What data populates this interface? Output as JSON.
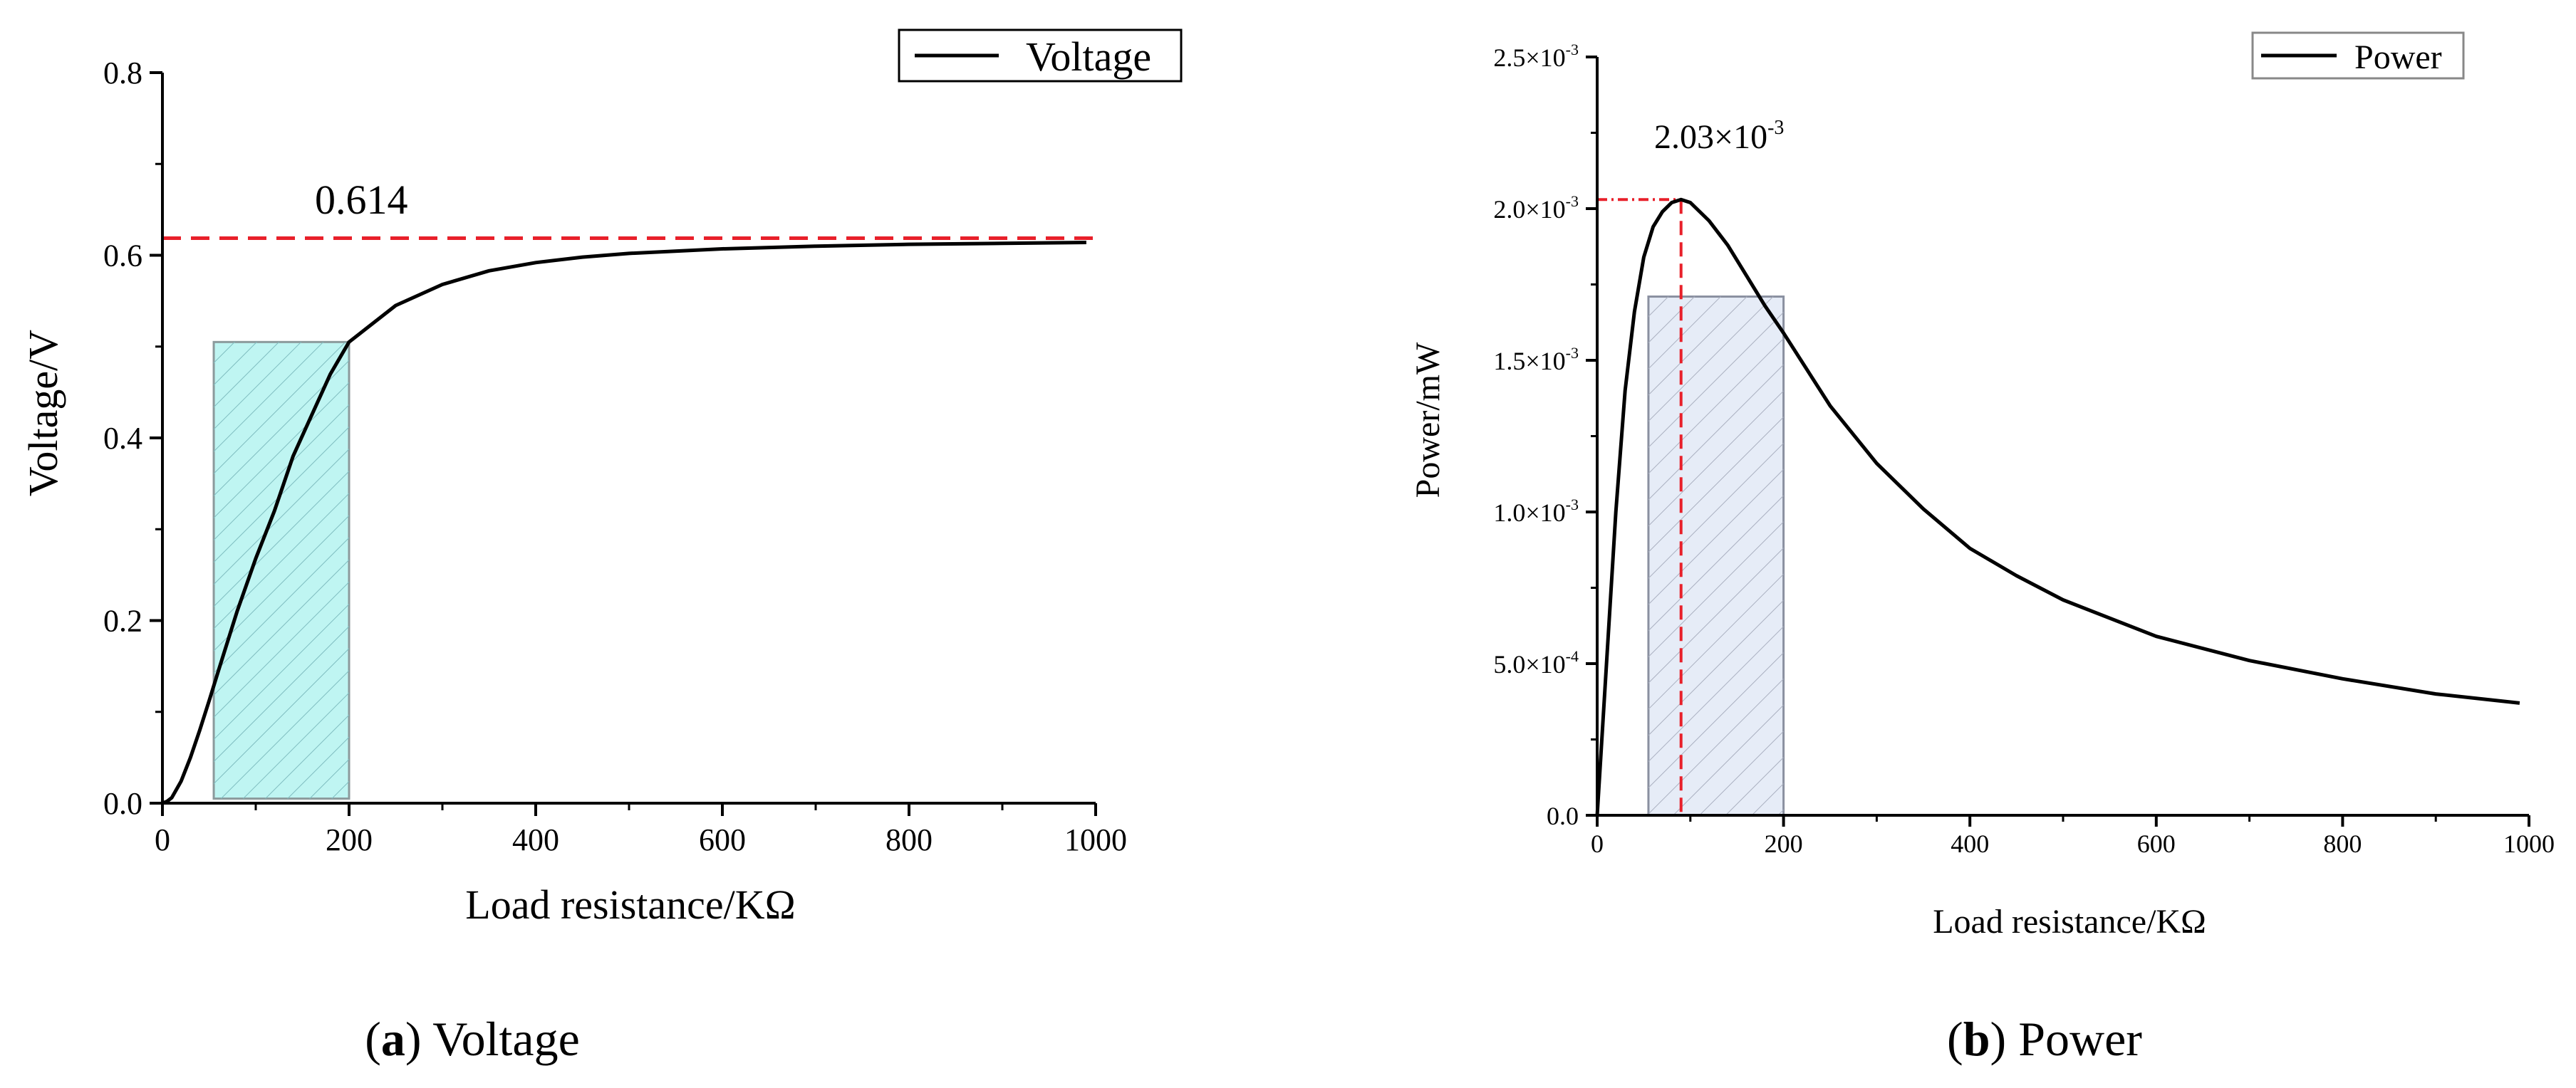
{
  "chart_data": [
    {
      "panel": "a",
      "type": "line",
      "caption_letter": "a",
      "caption_text": " Voltage",
      "xlabel": "Load resistance/KΩ",
      "ylabel": "Voltage/V",
      "xlim": [
        0,
        1000
      ],
      "ylim": [
        0,
        0.8
      ],
      "x_ticks": [
        "0",
        "200",
        "400",
        "600",
        "800",
        "1000"
      ],
      "y_ticks": [
        "0.0",
        "0.2",
        "0.4",
        "0.6",
        "0.8"
      ],
      "legend": [
        "Voltage"
      ],
      "legend_position": "top-right",
      "reference_line": {
        "y": 0.614,
        "label": "0.614",
        "color": "#e8202a"
      },
      "shaded_region": {
        "x0": 55,
        "x1": 200,
        "y0": 0.005,
        "y1": 0.505,
        "color": "#bff5f2"
      },
      "series": [
        {
          "name": "Voltage",
          "x": [
            0,
            5,
            10,
            20,
            30,
            40,
            50,
            60,
            80,
            100,
            120,
            140,
            160,
            180,
            200,
            250,
            300,
            350,
            400,
            450,
            500,
            600,
            700,
            800,
            900,
            990
          ],
          "y": [
            0.0,
            0.002,
            0.006,
            0.024,
            0.05,
            0.08,
            0.112,
            0.145,
            0.21,
            0.268,
            0.32,
            0.38,
            0.425,
            0.47,
            0.505,
            0.545,
            0.568,
            0.583,
            0.592,
            0.598,
            0.602,
            0.607,
            0.61,
            0.612,
            0.613,
            0.614
          ]
        }
      ]
    },
    {
      "panel": "b",
      "type": "line",
      "caption_letter": "b",
      "caption_text": " Power",
      "xlabel": "Load resistance/KΩ",
      "ylabel": "Power/mW",
      "xlim": [
        0,
        1000
      ],
      "ylim": [
        0,
        0.0025
      ],
      "x_ticks": [
        "0",
        "200",
        "400",
        "600",
        "800",
        "1000"
      ],
      "y_ticks": [
        {
          "value": 0,
          "mant": "0.0",
          "exp": ""
        },
        {
          "value": 0.0005,
          "mant": "5.0×10",
          "exp": "-4"
        },
        {
          "value": 0.001,
          "mant": "1.0×10",
          "exp": "-3"
        },
        {
          "value": 0.0015,
          "mant": "1.5×10",
          "exp": "-3"
        },
        {
          "value": 0.002,
          "mant": "2.0×10",
          "exp": "-3"
        },
        {
          "value": 0.0025,
          "mant": "2.5×10",
          "exp": "-3"
        }
      ],
      "legend": [
        "Power"
      ],
      "legend_position": "top-right",
      "peak": {
        "x": 90,
        "y": 0.00203,
        "mant": "2.03×10",
        "exp": "-3",
        "color": "#e8202a"
      },
      "shaded_region": {
        "x0": 55,
        "x1": 200,
        "y0": 0,
        "y1": 0.00171,
        "color": "#e6ecf7"
      },
      "series": [
        {
          "name": "Power",
          "x": [
            0,
            10,
            20,
            30,
            40,
            50,
            60,
            70,
            80,
            90,
            100,
            120,
            140,
            160,
            180,
            200,
            250,
            300,
            350,
            400,
            450,
            500,
            600,
            700,
            800,
            900,
            990
          ],
          "y": [
            0.0,
            0.0005,
            0.001,
            0.0014,
            0.00166,
            0.00184,
            0.00194,
            0.00199,
            0.00202,
            0.00203,
            0.00202,
            0.00196,
            0.00188,
            0.00178,
            0.00168,
            0.00159,
            0.00135,
            0.00116,
            0.00101,
            0.00088,
            0.00079,
            0.00071,
            0.00059,
            0.00051,
            0.00045,
            0.0004,
            0.00037
          ]
        }
      ]
    }
  ]
}
